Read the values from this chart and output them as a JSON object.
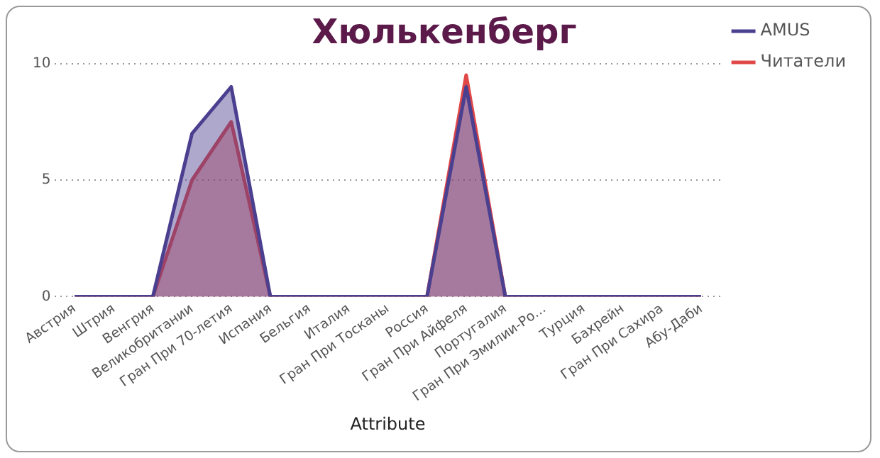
{
  "chart_data": {
    "type": "area",
    "title": "Хюлькенберг",
    "xlabel": "Attribute",
    "categories": [
      "Австрия",
      "Штрия",
      "Венгрия",
      "Великобритании",
      "Гран При 70-летия",
      "Испания",
      "Бельгия",
      "Италия",
      "Гран При Тосканы",
      "Россия",
      "Гран При Айфеля",
      "Португалия",
      "Гран При Эмилии-Ро...",
      "Турция",
      "Бахрейн",
      "Гран При Сахира",
      "Абу-Даби"
    ],
    "series": [
      {
        "name": "AMUS",
        "color": "#4b3f8f",
        "values": [
          0,
          0,
          0,
          7,
          9,
          0,
          0,
          0,
          0,
          0,
          9,
          0,
          0,
          0,
          0,
          0,
          0
        ]
      },
      {
        "name": "Читатели",
        "color": "#e04848",
        "values": [
          0,
          0,
          0,
          5,
          7.5,
          0,
          0,
          0,
          0,
          0,
          9.5,
          0,
          0,
          0,
          0,
          0,
          0
        ]
      }
    ],
    "ylim": [
      0,
      10
    ],
    "yticks": [
      0,
      5,
      10
    ],
    "grid": "y",
    "legend": "right",
    "marker": "none"
  }
}
